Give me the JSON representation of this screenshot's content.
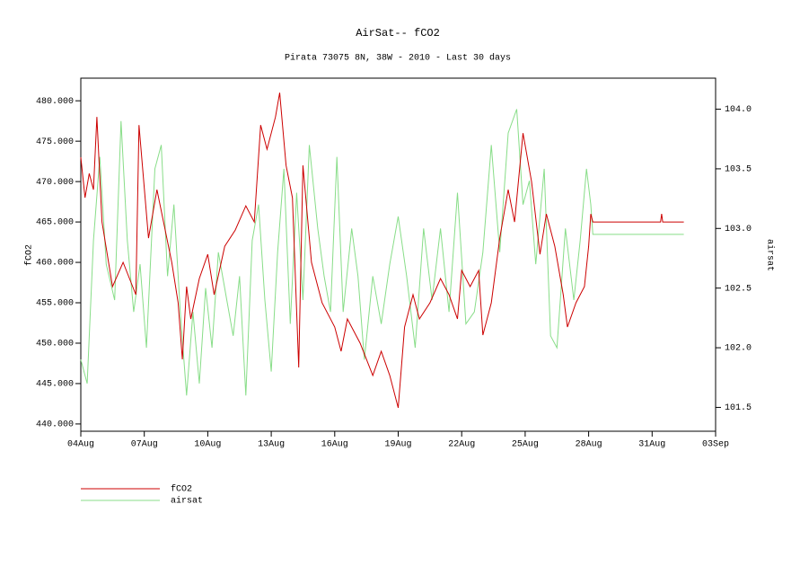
{
  "chart_data": {
    "type": "line",
    "title": "AirSat-- fCO2",
    "subtitle": "Pirata 73075 8N, 38W - 2010 - Last 30 days",
    "ylabel": "fCO2",
    "y2label": "airsat",
    "xlim": [
      0,
      30
    ],
    "xticks": [
      {
        "value": 0,
        "label": "04Aug"
      },
      {
        "value": 3,
        "label": "07Aug"
      },
      {
        "value": 6,
        "label": "10Aug"
      },
      {
        "value": 9,
        "label": "13Aug"
      },
      {
        "value": 12,
        "label": "16Aug"
      },
      {
        "value": 15,
        "label": "19Aug"
      },
      {
        "value": 18,
        "label": "22Aug"
      },
      {
        "value": 21,
        "label": "25Aug"
      },
      {
        "value": 24,
        "label": "28Aug"
      },
      {
        "value": 27,
        "label": "31Aug"
      },
      {
        "value": 30,
        "label": "03Sep"
      }
    ],
    "ylim": [
      439.1,
      482.8
    ],
    "yticks": [
      {
        "value": 440,
        "label": "440.000"
      },
      {
        "value": 445,
        "label": "445.000"
      },
      {
        "value": 450,
        "label": "450.000"
      },
      {
        "value": 455,
        "label": "455.000"
      },
      {
        "value": 460,
        "label": "460.000"
      },
      {
        "value": 465,
        "label": "465.000"
      },
      {
        "value": 470,
        "label": "470.000"
      },
      {
        "value": 475,
        "label": "475.000"
      },
      {
        "value": 480,
        "label": "480.000"
      }
    ],
    "y2lim": [
      101.3,
      104.26
    ],
    "y2ticks": [
      101.5,
      {
        "value": 102,
        "label": "102.0"
      },
      102.5,
      {
        "value": 103,
        "label": "103.0"
      },
      103.5,
      {
        "value": 104,
        "label": "104.0"
      }
    ],
    "series": [
      {
        "name": "fCO2",
        "color": "#cc0000",
        "x": [
          0,
          0.2,
          0.4,
          0.6,
          0.76,
          1.0,
          1.5,
          2.0,
          2.6,
          2.75,
          3.2,
          3.6,
          4.3,
          4.6,
          4.8,
          5.0,
          5.2,
          5.6,
          6.0,
          6.3,
          6.8,
          7.3,
          7.8,
          8.2,
          8.5,
          8.8,
          9.2,
          9.4,
          9.7,
          10.0,
          10.3,
          10.5,
          10.9,
          11.4,
          12.0,
          12.3,
          12.6,
          13.2,
          13.8,
          14.2,
          14.6,
          15.0,
          15.3,
          15.7,
          16.0,
          16.5,
          17.0,
          17.4,
          17.8,
          18.0,
          18.4,
          18.8,
          19.0,
          19.4,
          19.8,
          20.2,
          20.5,
          20.9,
          21.3,
          21.7,
          22.0,
          22.4,
          22.8,
          23.0,
          23.4,
          23.8,
          24.0,
          24.1,
          24.2,
          27.4,
          27.45,
          27.5,
          28.5
        ],
        "values": [
          473,
          468,
          471,
          469,
          478,
          465,
          457,
          460,
          456,
          477,
          463,
          469,
          460,
          455,
          448,
          457,
          453,
          458,
          461,
          456,
          462,
          464,
          467,
          465,
          477,
          474,
          478,
          481,
          472,
          468,
          447,
          472,
          460,
          455,
          452,
          449,
          453,
          450,
          446,
          449,
          446,
          442,
          452,
          456,
          453,
          455,
          458,
          456,
          453,
          459,
          457,
          459,
          451,
          455,
          463,
          469,
          465,
          476,
          470,
          461,
          466,
          462,
          456,
          452,
          455,
          457,
          462,
          466,
          465,
          465,
          466,
          465,
          465
        ]
      },
      {
        "name": "airsat",
        "color": "#88dd88",
        "axis": "y2",
        "x": [
          0,
          0.3,
          0.6,
          0.9,
          1.2,
          1.6,
          1.9,
          2.2,
          2.5,
          2.8,
          3.1,
          3.5,
          3.8,
          4.1,
          4.4,
          4.7,
          5.0,
          5.3,
          5.6,
          5.9,
          6.2,
          6.5,
          6.9,
          7.2,
          7.5,
          7.8,
          8.1,
          8.4,
          8.7,
          9.0,
          9.3,
          9.6,
          9.9,
          10.2,
          10.5,
          10.8,
          11.2,
          11.5,
          11.8,
          12.1,
          12.4,
          12.8,
          13.1,
          13.4,
          13.8,
          14.2,
          14.6,
          15.0,
          15.4,
          15.8,
          16.2,
          16.6,
          17.0,
          17.4,
          17.8,
          18.2,
          18.6,
          19.0,
          19.4,
          19.8,
          20.2,
          20.6,
          20.9,
          21.2,
          21.5,
          21.9,
          22.2,
          22.5,
          22.9,
          23.3,
          23.6,
          23.9,
          24.1,
          24.2,
          28.5
        ],
        "values": [
          101.9,
          101.7,
          102.9,
          103.6,
          102.7,
          102.4,
          103.9,
          102.9,
          102.3,
          102.7,
          102.0,
          103.5,
          103.7,
          102.6,
          103.2,
          102.3,
          101.6,
          102.3,
          101.7,
          102.5,
          102.0,
          102.8,
          102.4,
          102.1,
          102.6,
          101.6,
          102.9,
          103.2,
          102.4,
          101.8,
          102.8,
          103.5,
          102.2,
          103.3,
          102.4,
          103.7,
          103.0,
          102.6,
          102.3,
          103.6,
          102.3,
          103.0,
          102.6,
          101.9,
          102.6,
          102.2,
          102.7,
          103.1,
          102.6,
          102.0,
          103.0,
          102.4,
          103.0,
          102.3,
          103.3,
          102.2,
          102.3,
          102.8,
          103.7,
          102.8,
          103.8,
          104.0,
          103.2,
          103.4,
          102.7,
          103.5,
          102.1,
          102.0,
          103.0,
          102.4,
          102.9,
          103.5,
          103.2,
          102.95,
          102.95
        ]
      }
    ]
  }
}
